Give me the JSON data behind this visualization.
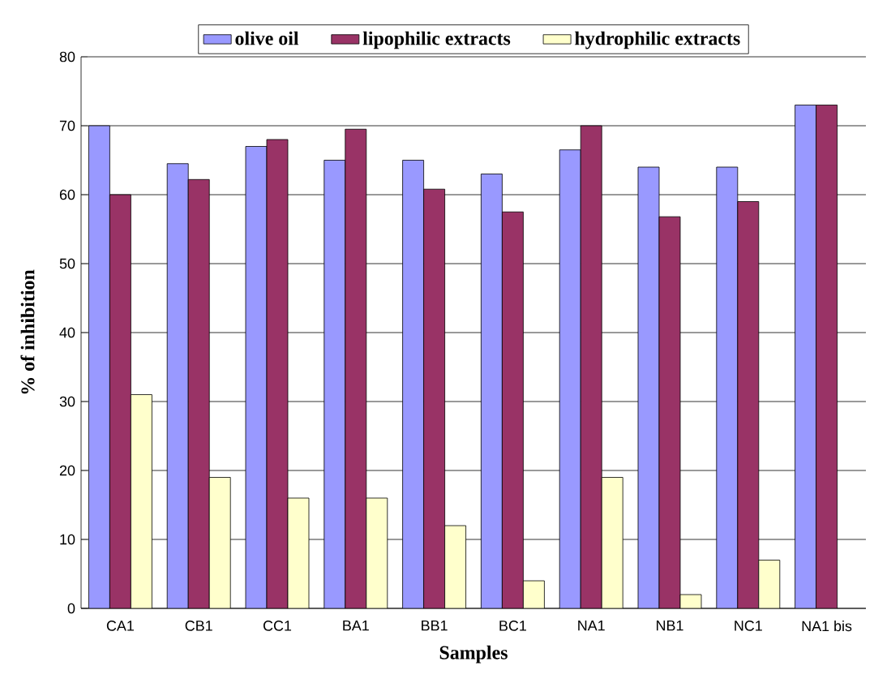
{
  "chart_data": {
    "type": "bar",
    "xlabel": "Samples",
    "ylabel": "% of inhibition",
    "categories": [
      "CA1",
      "CB1",
      "CC1",
      "BA1",
      "BB1",
      "BC1",
      "NA1",
      "NB1",
      "NC1",
      "NA1 bis"
    ],
    "series": [
      {
        "name": "olive oil",
        "color": "#9999ff",
        "values": [
          70,
          64.5,
          67,
          65,
          65,
          63,
          66.5,
          64,
          64,
          73
        ]
      },
      {
        "name": "lipophilic extracts",
        "color": "#993366",
        "values": [
          60,
          62.2,
          68,
          69.5,
          60.8,
          57.5,
          70,
          56.8,
          59,
          73
        ]
      },
      {
        "name": "hydrophilic extracts",
        "color": "#ffffcc",
        "values": [
          31,
          19,
          16,
          16,
          12,
          4,
          19,
          2,
          7,
          null
        ]
      }
    ],
    "ylim": [
      0,
      80
    ],
    "yticks": [
      0,
      10,
      20,
      30,
      40,
      50,
      60,
      70,
      80
    ],
    "grid": "y",
    "legend": "top"
  }
}
